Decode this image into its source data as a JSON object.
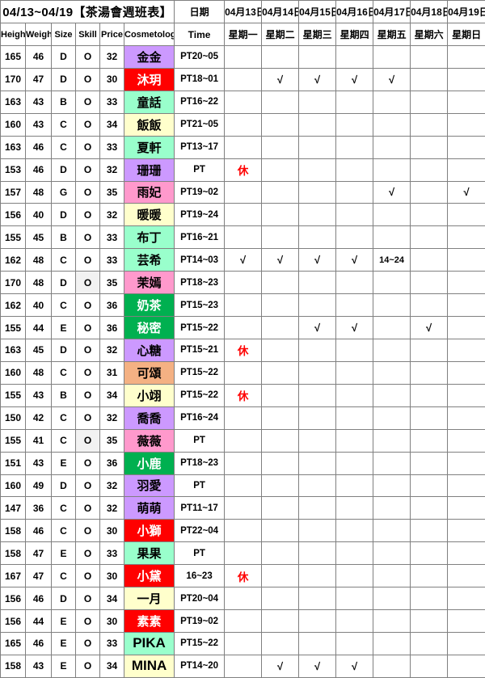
{
  "title": "04/13~04/19【茶湯會週班表】",
  "header": {
    "date_label": "日期",
    "time_label": "Time",
    "columns": [
      "Height",
      "Weight",
      "Size",
      "Skill",
      "Price",
      "Cosmetologist"
    ],
    "dates": [
      "04月13日",
      "04月14日",
      "04月15日",
      "04月16日",
      "04月17日",
      "04月18日",
      "04月19日"
    ],
    "weekdays": [
      "星期一",
      "星期二",
      "星期三",
      "星期四",
      "星期五",
      "星期六",
      "星期日"
    ]
  },
  "marks": {
    "check": "√",
    "rest": "休"
  },
  "colors": {
    "border": "#808080",
    "rest_text": "#FF0000",
    "skill_shade": "#F2F2F2",
    "name_fills": {
      "purple": "#CC99FF",
      "red": "#FF0000",
      "mint": "#99FFCC",
      "yellow": "#FFFFCC",
      "pink": "#FF99CC",
      "green": "#00B050",
      "peach": "#F4B183"
    },
    "white_text_fills": [
      "red",
      "green"
    ]
  },
  "rows": [
    {
      "height": "165",
      "weight": "46",
      "size": "D",
      "skill": "O",
      "price": "32",
      "name": "金金",
      "name_color": "purple",
      "time": "PT20~05",
      "days": [
        "",
        "",
        "",
        "",
        "",
        "",
        ""
      ]
    },
    {
      "height": "170",
      "weight": "47",
      "size": "D",
      "skill": "O",
      "price": "30",
      "name": "沐玥",
      "name_color": "red",
      "time": "PT18~01",
      "days": [
        "",
        "√",
        "√",
        "√",
        "√",
        "",
        ""
      ]
    },
    {
      "height": "163",
      "weight": "43",
      "size": "B",
      "skill": "O",
      "price": "33",
      "name": "童話",
      "name_color": "mint",
      "time": "PT16~22",
      "days": [
        "",
        "",
        "",
        "",
        "",
        "",
        ""
      ]
    },
    {
      "height": "160",
      "weight": "43",
      "size": "C",
      "skill": "O",
      "price": "34",
      "name": "飯飯",
      "name_color": "yellow",
      "time": "PT21~05",
      "days": [
        "",
        "",
        "",
        "",
        "",
        "",
        ""
      ]
    },
    {
      "height": "163",
      "weight": "46",
      "size": "C",
      "skill": "O",
      "price": "33",
      "name": "夏軒",
      "name_color": "mint",
      "time": "PT13~17",
      "days": [
        "",
        "",
        "",
        "",
        "",
        "",
        ""
      ]
    },
    {
      "height": "153",
      "weight": "46",
      "size": "D",
      "skill": "O",
      "price": "32",
      "name": "珊珊",
      "name_color": "purple",
      "time": "PT",
      "days": [
        "休",
        "",
        "",
        "",
        "",
        "",
        ""
      ]
    },
    {
      "height": "157",
      "weight": "48",
      "size": "G",
      "skill": "O",
      "price": "35",
      "name": "雨妃",
      "name_color": "pink",
      "time": "PT19~02",
      "days": [
        "",
        "",
        "",
        "",
        "√",
        "",
        "√"
      ]
    },
    {
      "height": "156",
      "weight": "40",
      "size": "D",
      "skill": "O",
      "price": "32",
      "name": "暖暖",
      "name_color": "yellow",
      "time": "PT19~24",
      "days": [
        "",
        "",
        "",
        "",
        "",
        "",
        ""
      ]
    },
    {
      "height": "155",
      "weight": "45",
      "size": "B",
      "skill": "O",
      "price": "33",
      "name": "布丁",
      "name_color": "mint",
      "time": "PT16~21",
      "days": [
        "",
        "",
        "",
        "",
        "",
        "",
        ""
      ]
    },
    {
      "height": "162",
      "weight": "48",
      "size": "C",
      "skill": "O",
      "price": "33",
      "name": "芸希",
      "name_color": "mint",
      "time": "PT14~03",
      "days": [
        "√",
        "√",
        "√",
        "√",
        "14~24",
        "",
        ""
      ]
    },
    {
      "height": "170",
      "weight": "48",
      "size": "D",
      "skill": "O",
      "skill_shaded": true,
      "price": "35",
      "name": "茉嫣",
      "name_color": "pink",
      "time": "PT18~23",
      "days": [
        "",
        "",
        "",
        "",
        "",
        "",
        ""
      ]
    },
    {
      "height": "162",
      "weight": "40",
      "size": "C",
      "skill": "O",
      "price": "36",
      "name": "奶茶",
      "name_color": "green",
      "time": "PT15~23",
      "days": [
        "",
        "",
        "",
        "",
        "",
        "",
        ""
      ]
    },
    {
      "height": "155",
      "weight": "44",
      "size": "E",
      "skill": "O",
      "price": "36",
      "name": "秘密",
      "name_color": "green",
      "time": "PT15~22",
      "days": [
        "",
        "",
        "√",
        "√",
        "",
        "√",
        ""
      ]
    },
    {
      "height": "163",
      "weight": "45",
      "size": "D",
      "skill": "O",
      "price": "32",
      "name": "心糖",
      "name_color": "purple",
      "time": "PT15~21",
      "days": [
        "休",
        "",
        "",
        "",
        "",
        "",
        ""
      ]
    },
    {
      "height": "160",
      "weight": "48",
      "size": "C",
      "skill": "O",
      "price": "31",
      "name": "可頌",
      "name_color": "peach",
      "time": "PT15~22",
      "days": [
        "",
        "",
        "",
        "",
        "",
        "",
        ""
      ]
    },
    {
      "height": "155",
      "weight": "43",
      "size": "B",
      "skill": "O",
      "price": "34",
      "name": "小翊",
      "name_color": "yellow",
      "time": "PT15~22",
      "days": [
        "休",
        "",
        "",
        "",
        "",
        "",
        ""
      ]
    },
    {
      "height": "150",
      "weight": "42",
      "size": "C",
      "skill": "O",
      "price": "32",
      "name": "喬喬",
      "name_color": "purple",
      "time": "PT16~24",
      "days": [
        "",
        "",
        "",
        "",
        "",
        "",
        ""
      ]
    },
    {
      "height": "155",
      "weight": "41",
      "size": "C",
      "skill": "O",
      "skill_shaded": true,
      "price": "35",
      "name": "薇薇",
      "name_color": "pink",
      "time": "PT",
      "days": [
        "",
        "",
        "",
        "",
        "",
        "",
        ""
      ]
    },
    {
      "height": "151",
      "weight": "43",
      "size": "E",
      "skill": "O",
      "price": "36",
      "name": "小鹿",
      "name_color": "green",
      "time": "PT18~23",
      "days": [
        "",
        "",
        "",
        "",
        "",
        "",
        ""
      ]
    },
    {
      "height": "160",
      "weight": "49",
      "size": "D",
      "skill": "O",
      "price": "32",
      "name": "羽愛",
      "name_color": "purple",
      "time": "PT",
      "days": [
        "",
        "",
        "",
        "",
        "",
        "",
        ""
      ]
    },
    {
      "height": "147",
      "weight": "36",
      "size": "C",
      "skill": "O",
      "price": "32",
      "name": "萌萌",
      "name_color": "purple",
      "time": "PT11~17",
      "days": [
        "",
        "",
        "",
        "",
        "",
        "",
        ""
      ]
    },
    {
      "height": "158",
      "weight": "46",
      "size": "C",
      "skill": "O",
      "price": "30",
      "name": "小獅",
      "name_color": "red",
      "time": "PT22~04",
      "days": [
        "",
        "",
        "",
        "",
        "",
        "",
        ""
      ]
    },
    {
      "height": "158",
      "weight": "47",
      "size": "E",
      "skill": "O",
      "price": "33",
      "name": "果果",
      "name_color": "mint",
      "time": "PT",
      "days": [
        "",
        "",
        "",
        "",
        "",
        "",
        ""
      ]
    },
    {
      "height": "167",
      "weight": "47",
      "size": "C",
      "skill": "O",
      "price": "30",
      "name": "小黛",
      "name_color": "red",
      "time": "16~23",
      "days": [
        "休",
        "",
        "",
        "",
        "",
        "",
        ""
      ]
    },
    {
      "height": "156",
      "weight": "46",
      "size": "D",
      "skill": "O",
      "price": "34",
      "name": "一月",
      "name_color": "yellow",
      "time": "PT20~04",
      "days": [
        "",
        "",
        "",
        "",
        "",
        "",
        ""
      ]
    },
    {
      "height": "156",
      "weight": "44",
      "size": "E",
      "skill": "O",
      "price": "30",
      "name": "素素",
      "name_color": "red",
      "time": "PT19~02",
      "days": [
        "",
        "",
        "",
        "",
        "",
        "",
        ""
      ]
    },
    {
      "height": "165",
      "weight": "46",
      "size": "E",
      "skill": "O",
      "price": "33",
      "name": "PIKA",
      "name_color": "mint",
      "time": "PT15~22",
      "days": [
        "",
        "",
        "",
        "",
        "",
        "",
        ""
      ]
    },
    {
      "height": "158",
      "weight": "43",
      "size": "E",
      "skill": "O",
      "price": "34",
      "name": "MINA",
      "name_color": "yellow",
      "time": "PT14~20",
      "days": [
        "",
        "√",
        "√",
        "√",
        "",
        "",
        ""
      ]
    }
  ]
}
